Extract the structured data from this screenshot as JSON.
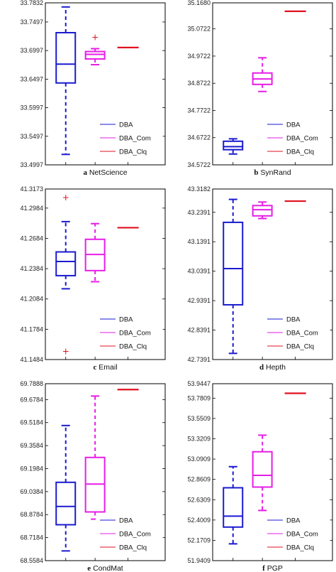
{
  "figure": {
    "legend_labels": [
      "DBA",
      "DBA_Com",
      "DBA_Clq"
    ],
    "series_colors": {
      "DBA": "#1a1ad0",
      "DBA_Com": "#e61ee6",
      "DBA_Clq": "#e01020"
    },
    "outlier_marker": "+"
  },
  "chart_data": [
    {
      "type": "box",
      "letter": "a",
      "caption": "NetScience",
      "ylim": [
        33.4997,
        33.7832
      ],
      "yticks": [
        "33.7832",
        "33.7497",
        "33.6997",
        "33.6497",
        "33.5997",
        "33.5497",
        "33.4997"
      ],
      "legend_position": "bottom-right",
      "series": [
        {
          "name": "DBA",
          "whisker_low": 33.518,
          "q1": 33.643,
          "median": 33.676,
          "q3": 33.731,
          "whisker_high": 33.776,
          "outliers": []
        },
        {
          "name": "DBA_Com",
          "whisker_low": 33.675,
          "q1": 33.685,
          "median": 33.693,
          "q3": 33.698,
          "whisker_high": 33.703,
          "outliers": [
            33.723
          ]
        },
        {
          "name": "DBA_Clq",
          "whisker_low": 33.705,
          "q1": 33.705,
          "median": 33.705,
          "q3": 33.705,
          "whisker_high": 33.705,
          "outliers": []
        }
      ]
    },
    {
      "type": "box",
      "letter": "b",
      "caption": "SynRand",
      "ylim": [
        34.5722,
        35.168
      ],
      "yticks": [
        "35.1680",
        "35.0722",
        "34.9722",
        "34.8722",
        "34.7722",
        "34.6722",
        "34.5722"
      ],
      "legend_position": "bottom-right",
      "series": [
        {
          "name": "DBA",
          "whisker_low": 34.612,
          "q1": 34.628,
          "median": 34.639,
          "q3": 34.659,
          "whisker_high": 34.668,
          "outliers": []
        },
        {
          "name": "DBA_Com",
          "whisker_low": 34.842,
          "q1": 34.868,
          "median": 34.888,
          "q3": 34.91,
          "whisker_high": 34.966,
          "outliers": []
        },
        {
          "name": "DBA_Clq",
          "whisker_low": 35.137,
          "q1": 35.137,
          "median": 35.137,
          "q3": 35.137,
          "whisker_high": 35.137,
          "outliers": []
        }
      ]
    },
    {
      "type": "box",
      "letter": "c",
      "caption": "Email",
      "ylim": [
        41.1484,
        41.3173
      ],
      "yticks": [
        "41.3173",
        "41.2984",
        "41.2684",
        "41.2384",
        "41.2084",
        "41.1784",
        "41.1484"
      ],
      "legend_position": "bottom-right",
      "series": [
        {
          "name": "DBA",
          "whisker_low": 41.2185,
          "q1": 41.2315,
          "median": 41.2455,
          "q3": 41.255,
          "whisker_high": 41.285,
          "outliers": [
            41.309,
            41.1565
          ]
        },
        {
          "name": "DBA_Com",
          "whisker_low": 41.2255,
          "q1": 41.2365,
          "median": 41.2525,
          "q3": 41.2675,
          "whisker_high": 41.283,
          "outliers": []
        },
        {
          "name": "DBA_Clq",
          "whisker_low": 41.279,
          "q1": 41.279,
          "median": 41.279,
          "q3": 41.279,
          "whisker_high": 41.279,
          "outliers": []
        }
      ]
    },
    {
      "type": "box",
      "letter": "d",
      "caption": "Hepth",
      "ylim": [
        42.7391,
        43.3182
      ],
      "yticks": [
        "43.3182",
        "43.2391",
        "43.1391",
        "43.0391",
        "42.9391",
        "42.8391",
        "42.7391"
      ],
      "legend_position": "bottom-right",
      "series": [
        {
          "name": "DBA",
          "whisker_low": 42.76,
          "q1": 42.925,
          "median": 43.048,
          "q3": 43.205,
          "whisker_high": 43.283,
          "outliers": []
        },
        {
          "name": "DBA_Com",
          "whisker_low": 43.218,
          "q1": 43.227,
          "median": 43.248,
          "q3": 43.262,
          "whisker_high": 43.274,
          "outliers": []
        },
        {
          "name": "DBA_Clq",
          "whisker_low": 43.277,
          "q1": 43.277,
          "median": 43.277,
          "q3": 43.277,
          "whisker_high": 43.277,
          "outliers": []
        }
      ]
    },
    {
      "type": "box",
      "letter": "e",
      "caption": "CondMat",
      "ylim": [
        68.5584,
        69.7888
      ],
      "yticks": [
        "69.7888",
        "69.6784",
        "69.5184",
        "69.3584",
        "69.1984",
        "69.0384",
        "68.8784",
        "68.7184",
        "68.5584"
      ],
      "legend_position": "bottom-right",
      "series": [
        {
          "name": "DBA",
          "whisker_low": 68.626,
          "q1": 68.808,
          "median": 68.935,
          "q3": 69.103,
          "whisker_high": 69.498,
          "outliers": []
        },
        {
          "name": "DBA_Com",
          "whisker_low": 68.847,
          "q1": 68.897,
          "median": 69.091,
          "q3": 69.276,
          "whisker_high": 69.703,
          "outliers": []
        },
        {
          "name": "DBA_Clq",
          "whisker_low": 69.748,
          "q1": 69.748,
          "median": 69.748,
          "q3": 69.748,
          "whisker_high": 69.748,
          "outliers": []
        }
      ]
    },
    {
      "type": "box",
      "letter": "f",
      "caption": "PGP",
      "ylim": [
        51.9409,
        53.9447
      ],
      "yticks": [
        "53.9447",
        "53.7809",
        "53.5509",
        "53.3209",
        "53.0909",
        "52.8609",
        "52.6309",
        "52.4009",
        "52.1709",
        "51.9409"
      ],
      "legend_position": "bottom-right",
      "series": [
        {
          "name": "DBA",
          "whisker_low": 52.131,
          "q1": 52.321,
          "median": 52.445,
          "q3": 52.766,
          "whisker_high": 53.005,
          "outliers": []
        },
        {
          "name": "DBA_Com",
          "whisker_low": 52.509,
          "q1": 52.774,
          "median": 52.907,
          "q3": 53.174,
          "whisker_high": 53.362,
          "outliers": []
        },
        {
          "name": "DBA_Clq",
          "whisker_low": 53.836,
          "q1": 53.836,
          "median": 53.836,
          "q3": 53.836,
          "whisker_high": 53.836,
          "outliers": []
        }
      ]
    }
  ]
}
